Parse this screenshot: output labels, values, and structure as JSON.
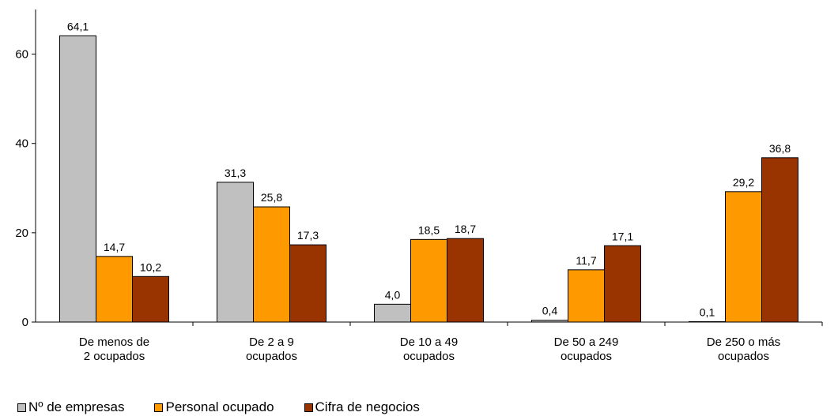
{
  "chart_data": {
    "type": "bar",
    "categories": [
      [
        "De menos de",
        "2 ocupados"
      ],
      [
        "De 2 a 9",
        "ocupados"
      ],
      [
        "De 10 a 49",
        "ocupados"
      ],
      [
        "De 50 a 249",
        "ocupados"
      ],
      [
        "De 250 o más",
        "ocupados"
      ]
    ],
    "series": [
      {
        "name": "Nº de empresas",
        "color": "#c0c0c0",
        "values": [
          64.1,
          31.3,
          4.0,
          0.4,
          0.1
        ],
        "labels": [
          "64,1",
          "31,3",
          "4,0",
          "0,4",
          "0,1"
        ]
      },
      {
        "name": "Personal ocupado",
        "color": "#ff9900",
        "values": [
          14.7,
          25.8,
          18.5,
          11.7,
          29.2
        ],
        "labels": [
          "14,7",
          "25,8",
          "18,5",
          "11,7",
          "29,2"
        ]
      },
      {
        "name": "Cifra de negocios",
        "color": "#993300",
        "values": [
          10.2,
          17.3,
          18.7,
          17.1,
          36.8
        ],
        "labels": [
          "10,2",
          "17,3",
          "18,7",
          "17,1",
          "36,8"
        ]
      }
    ],
    "yticks": [
      0,
      20,
      40,
      60
    ],
    "ytick_labels": [
      "0",
      "20",
      "40",
      "60"
    ],
    "ylim": [
      0,
      70
    ],
    "legend_position": "bottom-left",
    "grid": false
  }
}
